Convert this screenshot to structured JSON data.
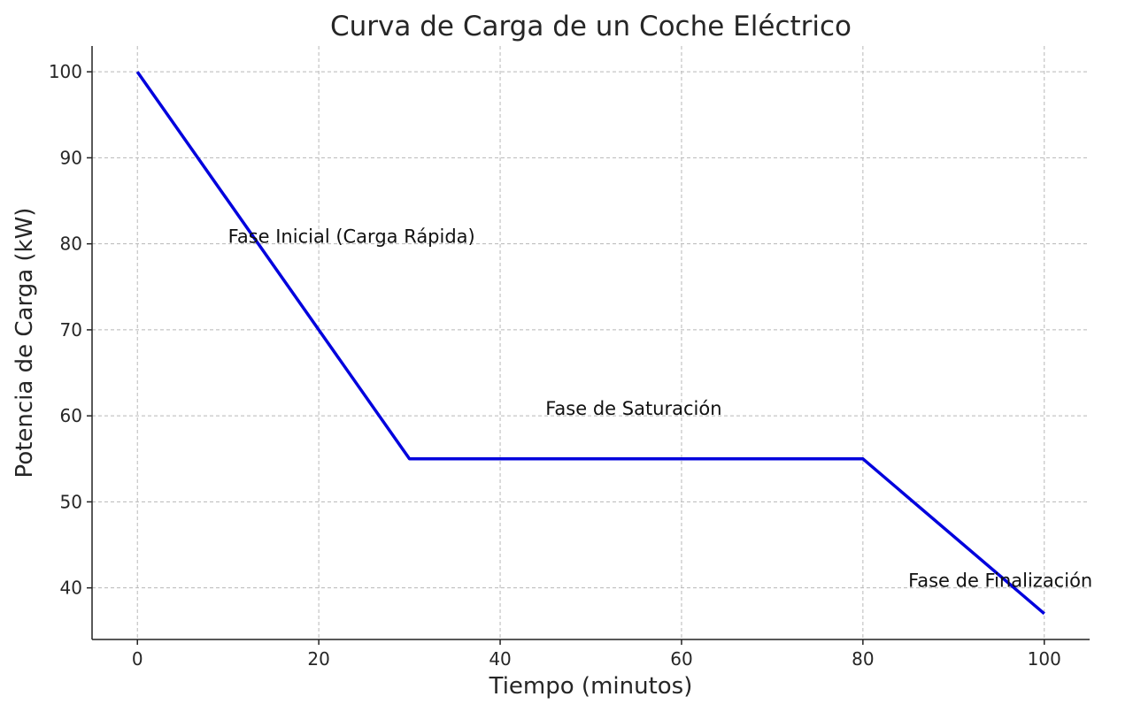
{
  "chart_data": {
    "type": "line",
    "title": "Curva de Carga de un Coche Eléctrico",
    "xlabel": "Tiempo (minutos)",
    "ylabel": "Potencia de Carga (kW)",
    "xlim": [
      -5,
      105
    ],
    "ylim": [
      34,
      103
    ],
    "xticks": [
      0,
      20,
      40,
      60,
      80,
      100
    ],
    "yticks": [
      40,
      50,
      60,
      70,
      80,
      90,
      100
    ],
    "grid": true,
    "series": [
      {
        "x": [
          0,
          30,
          80,
          100
        ],
        "y": [
          100,
          55,
          55,
          37
        ],
        "color": "#0000dd"
      }
    ],
    "annotations": [
      {
        "text": "Fase Inicial (Carga Rápida)",
        "x": 10,
        "y": 80
      },
      {
        "text": "Fase de Saturación",
        "x": 45,
        "y": 60
      },
      {
        "text": "Fase de Finalización",
        "x": 85,
        "y": 40
      }
    ]
  }
}
